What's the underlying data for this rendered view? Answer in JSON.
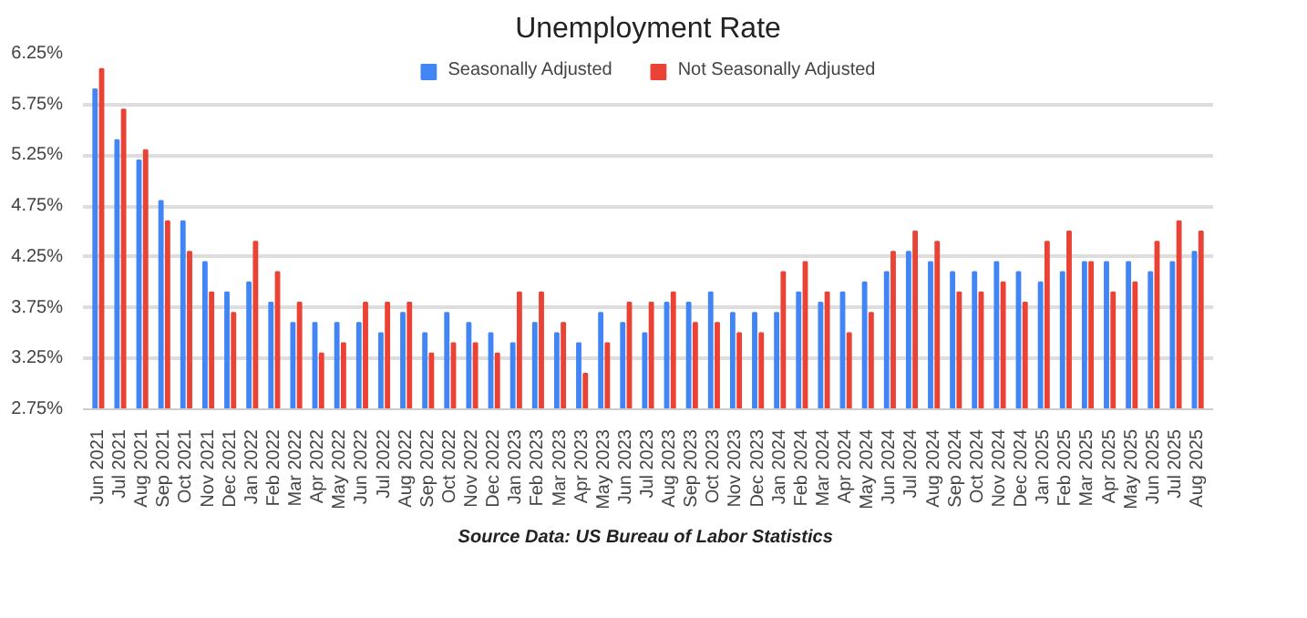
{
  "chart_data": {
    "type": "bar",
    "title": "Unemployment Rate",
    "categories": [
      "Jun 2021",
      "Jul 2021",
      "Aug 2021",
      "Sep 2021",
      "Oct 2021",
      "Nov 2021",
      "Dec 2021",
      "Jan 2022",
      "Feb 2022",
      "Mar 2022",
      "Apr 2022",
      "May 2022",
      "Jun 2022",
      "Jul 2022",
      "Aug 2022",
      "Sep 2022",
      "Oct 2022",
      "Nov 2022",
      "Dec 2022",
      "Jan 2023",
      "Feb 2023",
      "Mar 2023",
      "Apr 2023",
      "May 2023",
      "Jun 2023",
      "Jul 2023",
      "Aug 2023",
      "Sep 2023",
      "Oct 2023",
      "Nov 2023",
      "Dec 2023",
      "Jan 2024",
      "Feb 2024",
      "Mar 2024",
      "Apr 2024",
      "May 2024",
      "Jun 2024",
      "Jul 2024",
      "Aug 2024",
      "Sep 2024",
      "Oct 2024",
      "Nov 2024",
      "Dec 2024",
      "Jan 2025",
      "Feb 2025",
      "Mar 2025",
      "Apr 2025",
      "May 2025",
      "Jun 2025",
      "Jul 2025",
      "Aug 2025"
    ],
    "series": [
      {
        "name": "Seasonally Adjusted",
        "color": "#4285f4",
        "values": [
          5.9,
          5.4,
          5.2,
          4.8,
          4.6,
          4.2,
          3.9,
          4.0,
          3.8,
          3.6,
          3.6,
          3.6,
          3.6,
          3.5,
          3.7,
          3.5,
          3.7,
          3.6,
          3.5,
          3.4,
          3.6,
          3.5,
          3.4,
          3.7,
          3.6,
          3.5,
          3.8,
          3.8,
          3.9,
          3.7,
          3.7,
          3.7,
          3.9,
          3.8,
          3.9,
          4.0,
          4.1,
          4.3,
          4.2,
          4.1,
          4.1,
          4.2,
          4.1,
          4.0,
          4.1,
          4.2,
          4.2,
          4.2,
          4.1,
          4.2,
          4.3
        ]
      },
      {
        "name": "Not Seasonally Adjusted",
        "color": "#ea4335",
        "values": [
          6.1,
          5.7,
          5.3,
          4.6,
          4.3,
          3.9,
          3.7,
          4.4,
          4.1,
          3.8,
          3.3,
          3.4,
          3.8,
          3.8,
          3.8,
          3.3,
          3.4,
          3.4,
          3.3,
          3.9,
          3.9,
          3.6,
          3.1,
          3.4,
          3.8,
          3.8,
          3.9,
          3.6,
          3.6,
          3.5,
          3.5,
          4.1,
          4.2,
          3.9,
          3.5,
          3.7,
          4.3,
          4.5,
          4.4,
          3.9,
          3.9,
          4.0,
          3.8,
          4.4,
          4.5,
          4.2,
          3.9,
          4.0,
          4.4,
          4.6,
          4.5
        ]
      }
    ],
    "ylim": [
      2.75,
      6.25
    ],
    "yticks": [
      {
        "value": 2.75,
        "label": "2.75%"
      },
      {
        "value": 3.25,
        "label": "3.25%"
      },
      {
        "value": 3.75,
        "label": "3.75%"
      },
      {
        "value": 4.25,
        "label": "4.25%"
      },
      {
        "value": 4.75,
        "label": "4.75%"
      },
      {
        "value": 5.25,
        "label": "5.25%"
      },
      {
        "value": 5.75,
        "label": "5.75%"
      },
      {
        "value": 6.25,
        "label": "6.25%"
      }
    ],
    "grid": "y",
    "legend": "top",
    "annotations": [
      "Source Data:  US Bureau of Labor Statistics"
    ]
  }
}
